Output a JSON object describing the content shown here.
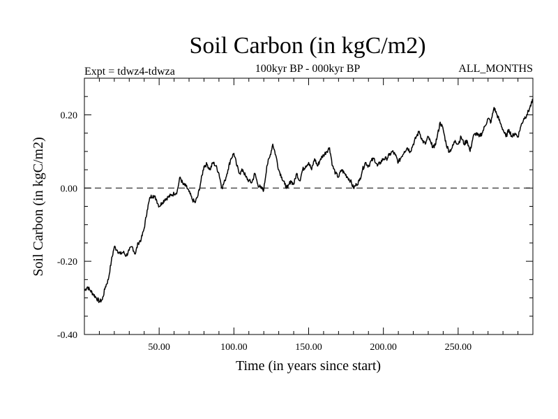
{
  "chart_data": {
    "type": "line",
    "title": "Soil Carbon (in kgC/m2)",
    "subtitle": "100kyr BP - 000kyr BP",
    "experiment": "Expt = tdwz4-tdwza",
    "period": "ALL_MONTHS",
    "xlabel": "Time (in years since start)",
    "ylabel": "Soil Carbon (in kgC/m2)",
    "xlim": [
      0,
      300
    ],
    "ylim": [
      -0.4,
      0.3
    ],
    "x_ticks": [
      50,
      100,
      150,
      200,
      250
    ],
    "x_tick_labels": [
      "50.00",
      "100.00",
      "150.00",
      "200.00",
      "250.00"
    ],
    "y_ticks": [
      -0.4,
      -0.2,
      0.0,
      0.2
    ],
    "y_tick_labels": [
      "-0.40",
      "-0.20",
      "0.00",
      "0.20"
    ],
    "reference_line": 0.0,
    "colors": {
      "line": "#000000",
      "background": "#ffffff"
    },
    "series": [
      {
        "name": "Soil Carbon",
        "x": [
          0,
          2,
          4,
          6,
          8,
          10,
          12,
          14,
          16,
          18,
          20,
          22,
          24,
          26,
          28,
          30,
          32,
          34,
          36,
          38,
          40,
          42,
          44,
          46,
          48,
          50,
          52,
          54,
          56,
          58,
          60,
          62,
          64,
          66,
          68,
          70,
          72,
          74,
          76,
          78,
          80,
          82,
          84,
          86,
          88,
          90,
          92,
          94,
          96,
          98,
          100,
          102,
          104,
          106,
          108,
          110,
          112,
          114,
          116,
          118,
          120,
          122,
          124,
          126,
          128,
          130,
          132,
          134,
          136,
          138,
          140,
          142,
          144,
          146,
          148,
          150,
          152,
          154,
          156,
          158,
          160,
          162,
          164,
          166,
          168,
          170,
          172,
          174,
          176,
          178,
          180,
          182,
          184,
          186,
          188,
          190,
          192,
          194,
          196,
          198,
          200,
          202,
          204,
          206,
          208,
          210,
          212,
          214,
          216,
          218,
          220,
          222,
          224,
          226,
          228,
          230,
          232,
          234,
          236,
          238,
          240,
          242,
          244,
          246,
          248,
          250,
          252,
          254,
          256,
          258,
          260,
          262,
          264,
          266,
          268,
          270,
          272,
          274,
          276,
          278,
          280,
          282,
          284,
          286,
          288,
          290,
          292,
          294,
          296,
          298,
          300
        ],
        "values": [
          -0.28,
          -0.27,
          -0.28,
          -0.29,
          -0.3,
          -0.31,
          -0.305,
          -0.27,
          -0.25,
          -0.2,
          -0.16,
          -0.17,
          -0.18,
          -0.175,
          -0.185,
          -0.17,
          -0.16,
          -0.18,
          -0.15,
          -0.14,
          -0.11,
          -0.06,
          -0.025,
          -0.02,
          -0.03,
          -0.05,
          -0.04,
          -0.03,
          -0.025,
          -0.02,
          -0.015,
          -0.01,
          0.03,
          0.01,
          0.005,
          -0.01,
          -0.03,
          -0.04,
          -0.02,
          0.02,
          0.06,
          0.065,
          0.05,
          0.07,
          0.06,
          0.04,
          0.0,
          0.02,
          0.05,
          0.08,
          0.095,
          0.06,
          0.04,
          0.05,
          0.03,
          0.02,
          0.015,
          0.04,
          0.01,
          0.0,
          -0.005,
          0.06,
          0.085,
          0.12,
          0.09,
          0.05,
          0.03,
          0.01,
          0.0,
          0.02,
          0.01,
          0.04,
          0.02,
          0.05,
          0.06,
          0.07,
          0.05,
          0.08,
          0.06,
          0.08,
          0.09,
          0.1,
          0.11,
          0.06,
          0.04,
          0.03,
          0.05,
          0.04,
          0.03,
          0.02,
          0.0,
          0.01,
          0.02,
          0.05,
          0.07,
          0.06,
          0.075,
          0.08,
          0.06,
          0.07,
          0.08,
          0.08,
          0.09,
          0.1,
          0.09,
          0.07,
          0.085,
          0.1,
          0.11,
          0.1,
          0.12,
          0.14,
          0.155,
          0.13,
          0.12,
          0.14,
          0.12,
          0.11,
          0.14,
          0.18,
          0.16,
          0.12,
          0.1,
          0.11,
          0.13,
          0.12,
          0.14,
          0.12,
          0.13,
          0.1,
          0.14,
          0.15,
          0.14,
          0.15,
          0.17,
          0.19,
          0.18,
          0.22,
          0.2,
          0.18,
          0.16,
          0.14,
          0.16,
          0.14,
          0.15,
          0.14,
          0.17,
          0.19,
          0.2,
          0.22,
          0.24
        ]
      }
    ]
  }
}
